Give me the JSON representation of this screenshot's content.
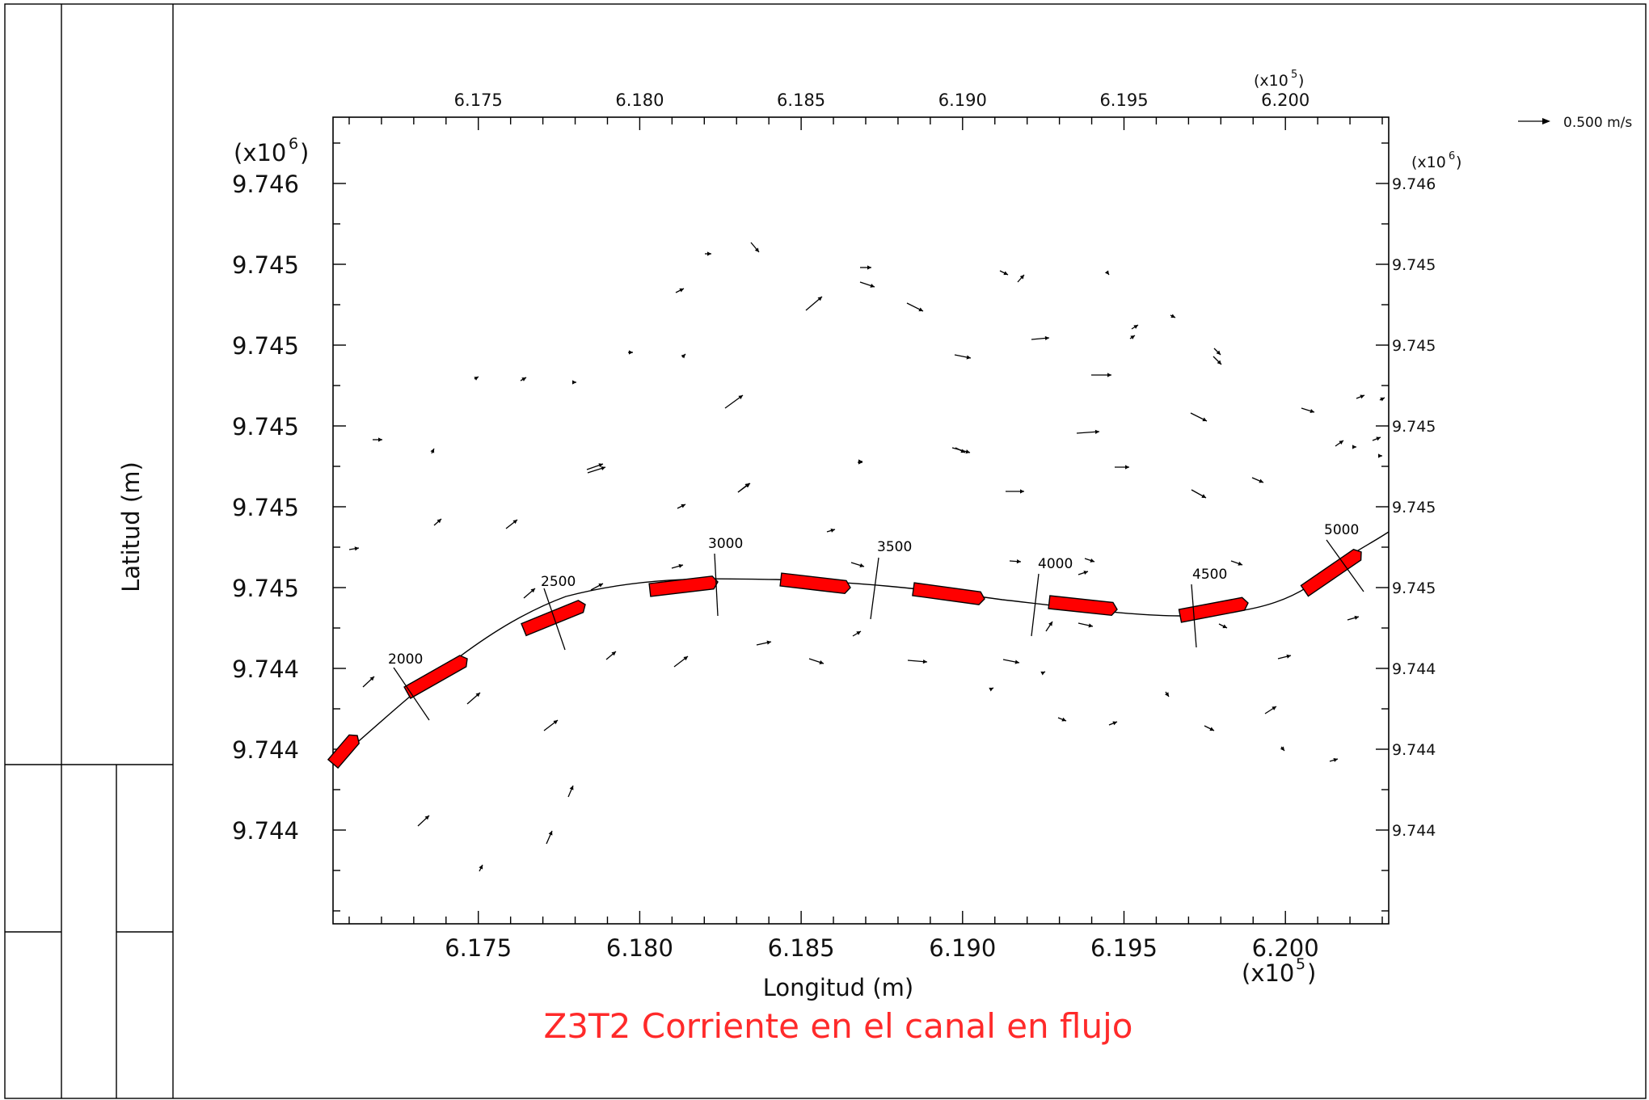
{
  "chart_data": {
    "type": "vector-field",
    "title": "Z3T2 Corriente en el canal en flujo",
    "xlabel": "Longitud (m)",
    "ylabel": "Latitud (m)",
    "x_multiplier": "(x10^5)",
    "y_multiplier": "(x10^6)",
    "x_tick_labels": [
      "6.175",
      "6.180",
      "6.185",
      "6.190",
      "6.195",
      "6.200"
    ],
    "x_ticks": [
      6.175,
      6.18,
      6.185,
      6.19,
      6.195,
      6.2
    ],
    "xlim": [
      6.1705,
      6.2032
    ],
    "y_tick_labels": [
      "9.746",
      "9.745",
      "9.745",
      "9.745",
      "9.745",
      "9.745",
      "9.744",
      "9.744",
      "9.744"
    ],
    "scale_label": "0.500 m/s",
    "title_color": "#ff2a2a",
    "ship_color": "#ff0000",
    "stations": [
      {
        "label": "2000",
        "x": 6.1735
      },
      {
        "label": "2500",
        "x": 6.1775
      },
      {
        "label": "3000",
        "x": 6.182
      },
      {
        "label": "3500",
        "x": 6.1872
      },
      {
        "label": "4000",
        "x": 6.1925
      },
      {
        "label": "4500",
        "x": 6.1975
      },
      {
        "label": "5000",
        "x": 6.2015
      }
    ]
  }
}
